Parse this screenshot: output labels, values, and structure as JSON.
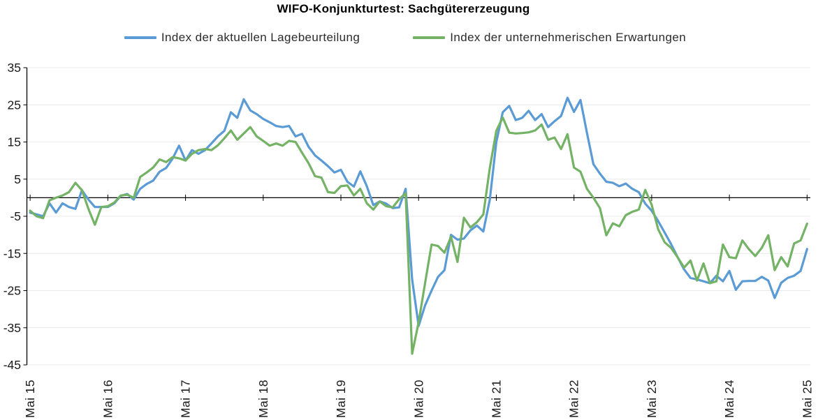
{
  "chart_data": {
    "type": "line",
    "title": "WIFO-Konjunkturtest: Sachgütererzeugung",
    "x_axis": {
      "frequency": "monthly",
      "first_label": "Mai 15",
      "last_label": "Mai 25",
      "tick_labels": [
        "Mai 15",
        "Mai 16",
        "Mai 17",
        "Mai 18",
        "Mai 19",
        "Mai 20",
        "Mai 21",
        "Mai 22",
        "Mai 23",
        "Mai 24",
        "Mai 25"
      ],
      "ticks_every_n_months": 12
    },
    "y_axis": {
      "min": -45,
      "max": 35,
      "tick_step": 10,
      "tick_labels": [
        "35",
        "25",
        "15",
        "5",
        "-5",
        "-15",
        "-25",
        "-35",
        "-45"
      ]
    },
    "grid": true,
    "zero_line": true,
    "legend_position": "top",
    "colors": {
      "grid": "#e9e9e9",
      "axis": "#000000",
      "tick_text": "#333333"
    },
    "series": [
      {
        "name": "Index der aktuellen Lagebeurteilung",
        "color": "#5B9BD5",
        "values": [
          -4,
          -4.5,
          -5,
          -1.5,
          -4,
          -1.5,
          -2.5,
          -3,
          2,
          -0.5,
          -2.5,
          -2.5,
          -2.5,
          -1.5,
          0.5,
          1,
          -0.5,
          2.4,
          3.7,
          4.6,
          7,
          8,
          10.5,
          14,
          10,
          12.8,
          11.8,
          12.8,
          14.6,
          16.5,
          18,
          23,
          21.5,
          26.5,
          23.5,
          22.5,
          21.2,
          20.3,
          19.3,
          19,
          19.3,
          16.5,
          17.2,
          13.7,
          11.4,
          10,
          8.5,
          6.8,
          7.5,
          4.3,
          3,
          7.1,
          3.1,
          -2,
          -1,
          -1.6,
          -2.8,
          -2.6,
          2.4,
          -22,
          -34.5,
          -29,
          -25,
          -21.3,
          -19.5,
          -10,
          -11.3,
          -11,
          -8.8,
          -7.5,
          -9.1,
          -0.5,
          15,
          23,
          24.7,
          20.9,
          21.5,
          23.4,
          20.9,
          22.5,
          19,
          20.6,
          22,
          26.9,
          23.1,
          26.3,
          17.5,
          9,
          6.5,
          4.3,
          4,
          3.1,
          3.8,
          2.4,
          1.5,
          -1.6,
          -3.5,
          -6.3,
          -9.4,
          -12.5,
          -16,
          -19.3,
          -21.6,
          -22,
          -22.5,
          -23,
          -21,
          -22.5,
          -19.7,
          -24.8,
          -22.5,
          -22.4,
          -22.4,
          -21.3,
          -22.3,
          -27,
          -22.9,
          -21.6,
          -21,
          -19.7,
          -13.8
        ]
      },
      {
        "name": "Index der unternehmerischen Erwartungen",
        "color": "#74B266",
        "values": [
          -3.5,
          -5,
          -5.5,
          -0.7,
          0,
          0.6,
          1.5,
          4,
          2,
          -3,
          -7.3,
          -2.5,
          -2.3,
          -1.3,
          0.6,
          0.8,
          0,
          5.6,
          6.8,
          8.1,
          10.3,
          9.6,
          10.9,
          10.6,
          10,
          11.8,
          12.8,
          13.1,
          12.8,
          14.1,
          16,
          18.1,
          15.6,
          17.3,
          19,
          16.5,
          15.3,
          14,
          14.6,
          14,
          15.3,
          15,
          12.1,
          9.3,
          5.8,
          5.4,
          1.5,
          1.3,
          3.1,
          3.3,
          0.6,
          2.4,
          -1.5,
          -3.2,
          -1,
          -2.3,
          -2.6,
          -0.4,
          1.2,
          -42,
          -33.5,
          -23,
          -12.6,
          -13,
          -14.8,
          -10.5,
          -17.3,
          -5.4,
          -8,
          -6.6,
          -4.5,
          8,
          18,
          21.6,
          17.5,
          17.3,
          17.4,
          17.6,
          18.1,
          19.7,
          15.6,
          16.2,
          13.1,
          17.1,
          8.1,
          7,
          2.4,
          0,
          -2.8,
          -10.1,
          -6.9,
          -7.7,
          -4.7,
          -3.8,
          -3.2,
          2.1,
          -1.9,
          -8.5,
          -12,
          -13.5,
          -16,
          -18.8,
          -16.9,
          -22.3,
          -17.7,
          -23,
          -22.5,
          -12.6,
          -16,
          -16.3,
          -11.5,
          -13.8,
          -15.7,
          -13.5,
          -10.1,
          -19.5,
          -16,
          -18.5,
          -12.3,
          -11.5,
          -7
        ]
      }
    ]
  }
}
